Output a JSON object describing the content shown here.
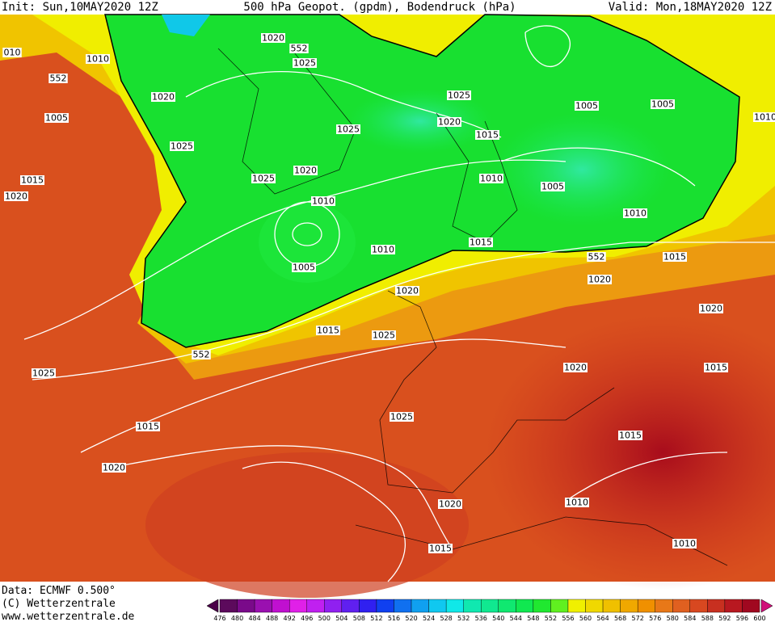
{
  "header": {
    "init": "Init: Sun,10MAY2020 12Z",
    "title": "500 hPa Geopot. (gpdm), Bodendruck (hPa)",
    "valid": "Valid: Mon,18MAY2020 12Z"
  },
  "footer": {
    "data": "Data: ECMWF  0.500°",
    "copyright": "(C) Wetterzentrale",
    "url": "www.wetterzentrale.de"
  },
  "colorbar": {
    "labels": [
      476,
      480,
      484,
      488,
      492,
      496,
      500,
      504,
      508,
      512,
      516,
      520,
      524,
      528,
      532,
      536,
      540,
      544,
      548,
      552,
      556,
      560,
      564,
      568,
      572,
      576,
      580,
      584,
      588,
      592,
      596,
      600
    ],
    "colors": [
      "#5c0a5c",
      "#7a0a8a",
      "#9a10b0",
      "#c010d0",
      "#e020e8",
      "#c020f0",
      "#9020f0",
      "#6020f0",
      "#3020f0",
      "#1040f0",
      "#1070f0",
      "#10a0f0",
      "#10c8f0",
      "#10e8e8",
      "#10e8b0",
      "#10e890",
      "#10e870",
      "#10e850",
      "#20e830",
      "#60f020",
      "#f0f000",
      "#f0d800",
      "#f0c000",
      "#f0a800",
      "#f09000",
      "#e87818",
      "#e06020",
      "#d84820",
      "#c83020",
      "#b81820",
      "#a00820"
    ]
  },
  "isobar_labels": [
    "1020",
    "552",
    "1025",
    "1010",
    "552",
    "1020",
    "1005",
    "1025",
    "1025",
    "1005",
    "1005",
    "1020",
    "1025",
    "1015",
    "1020",
    "1025",
    "1010",
    "1015",
    "1020",
    "1005",
    "1010",
    "1010",
    "1010",
    "1015",
    "552",
    "1015",
    "1005",
    "1020",
    "1020",
    "1020",
    "1015",
    "1025",
    "552",
    "1020",
    "1015",
    "1025",
    "1025",
    "1015",
    "1015",
    "1020",
    "1020",
    "1010",
    "1010",
    "1015",
    "1010",
    "010"
  ]
}
